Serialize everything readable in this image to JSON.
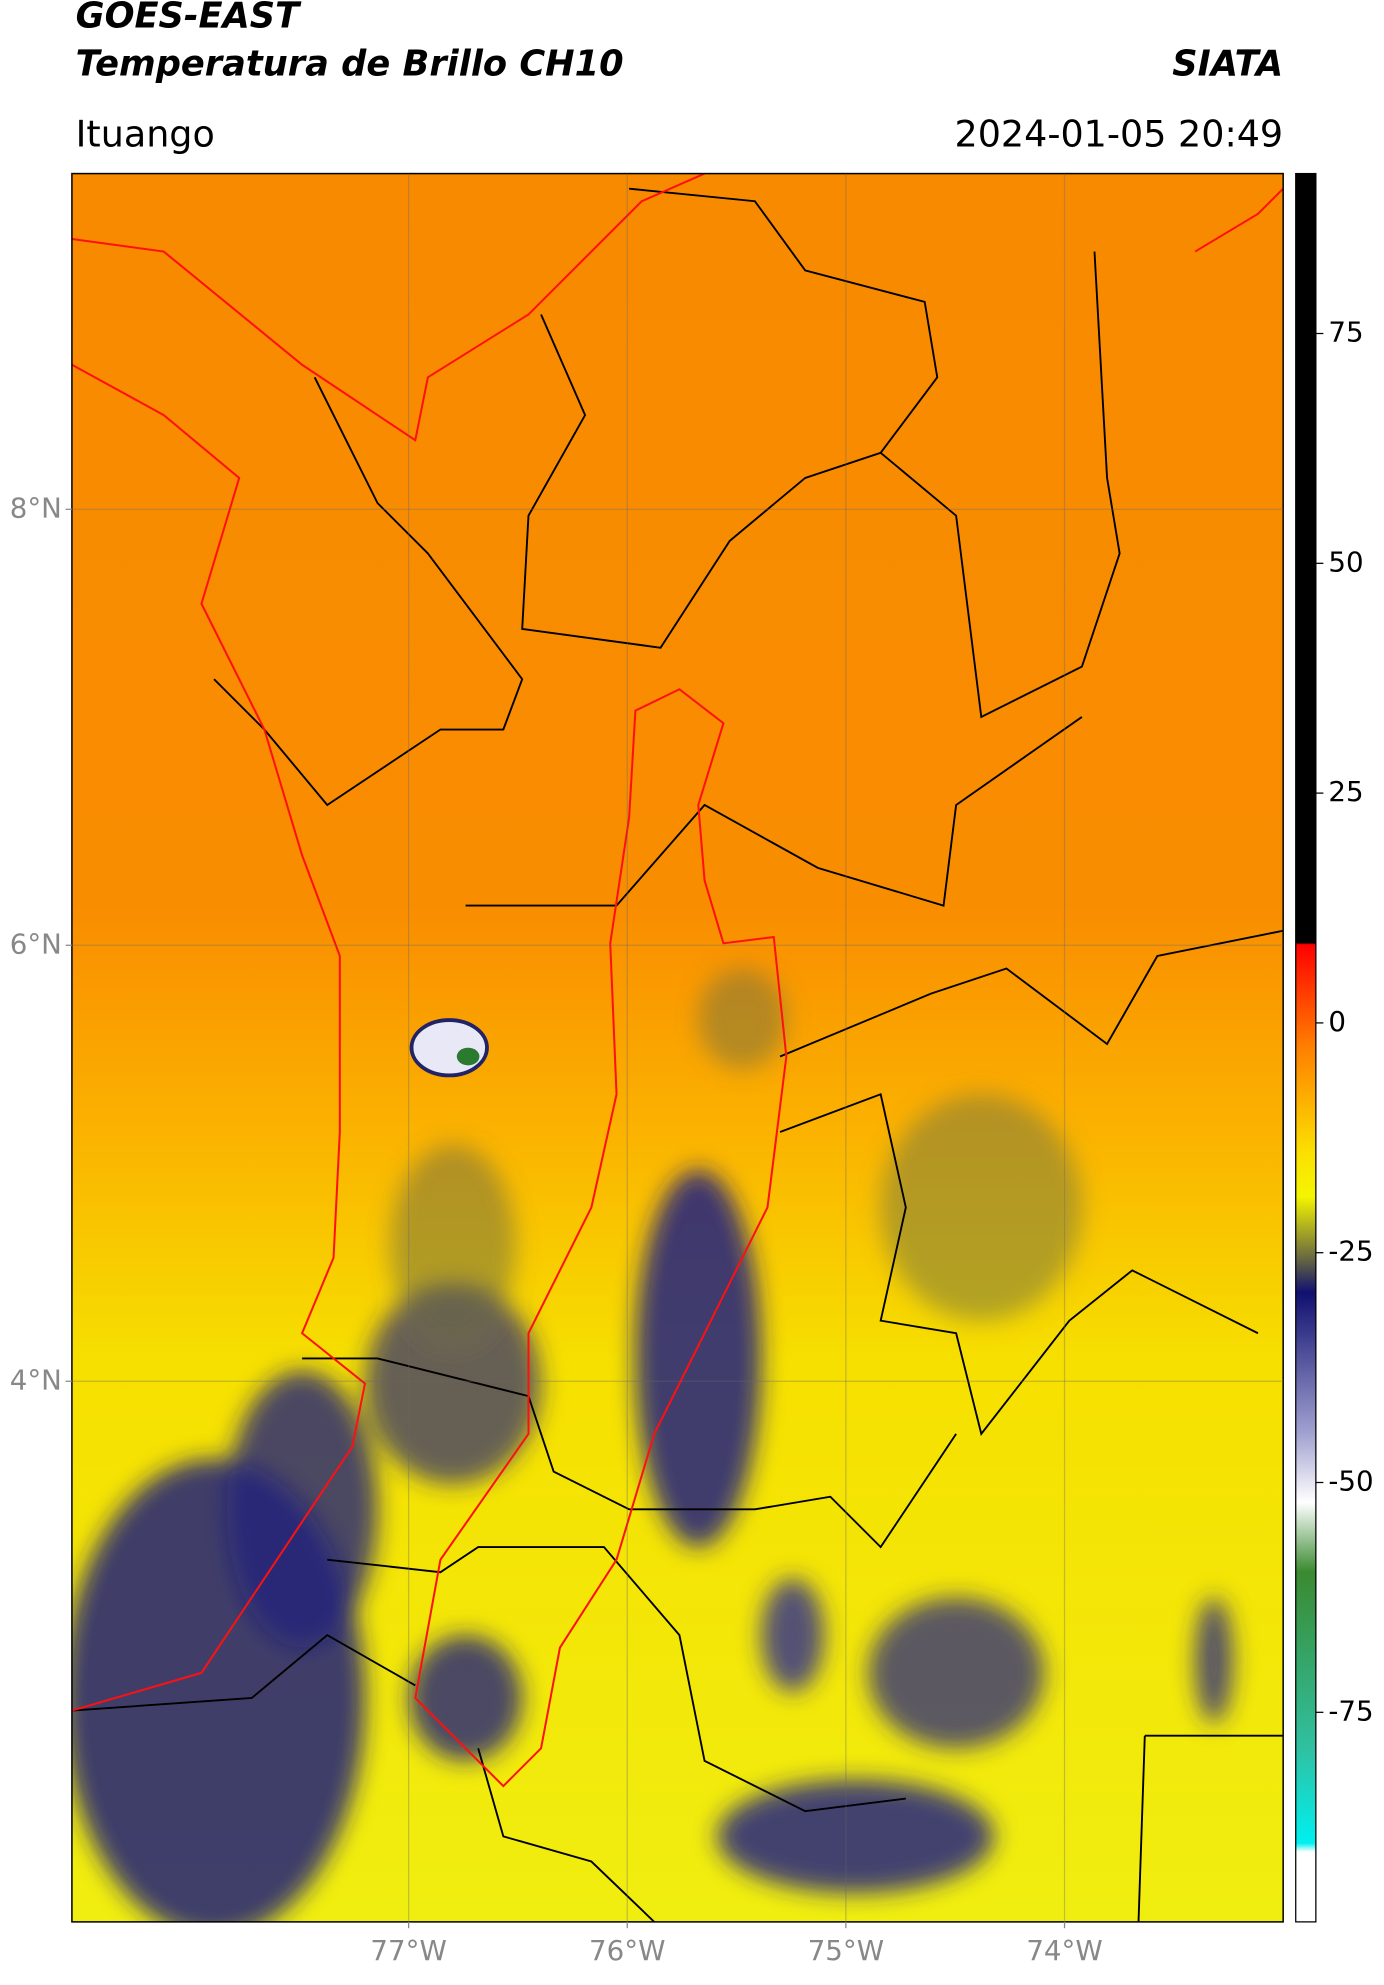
{
  "chart_data": {
    "type": "map",
    "title": "GOES-EAST",
    "subtitle": "Temperatura de Brillo CH10",
    "source": "SIATA",
    "location": "Ituango",
    "datetime": "2024-01-05 20:49",
    "xlim": [
      -78.54,
      -73.0
    ],
    "ylim": [
      1.52,
      9.54
    ],
    "xticks": [
      {
        "value": -77,
        "label": "77°W"
      },
      {
        "value": -76,
        "label": "76°W"
      },
      {
        "value": -75,
        "label": "75°W"
      },
      {
        "value": -74,
        "label": "74°W"
      }
    ],
    "yticks": [
      {
        "value": 4,
        "label": "4°N"
      },
      {
        "value": 6,
        "label": "6°N"
      },
      {
        "value": 8,
        "label": "8°N"
      }
    ],
    "grid": true,
    "colorbar": {
      "lim": [
        -97.8,
        92.4
      ],
      "ticks": [
        -75,
        -50,
        -25,
        0,
        25,
        50,
        75
      ]
    }
  }
}
